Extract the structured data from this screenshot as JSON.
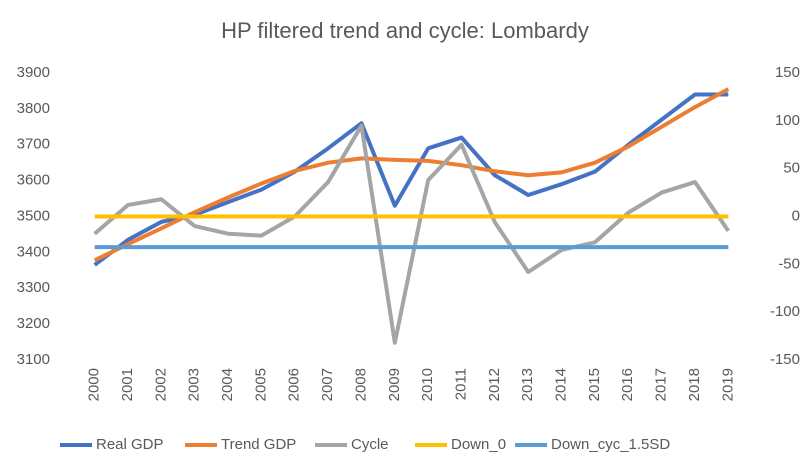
{
  "chart_data": {
    "type": "line",
    "title": "HP filtered trend and cycle: Lombardy",
    "categories": [
      "2000",
      "2001",
      "2002",
      "2003",
      "2004",
      "2005",
      "2006",
      "2007",
      "2008",
      "2009",
      "2010",
      "2011",
      "2012",
      "2013",
      "2014",
      "2015",
      "2016",
      "2017",
      "2018",
      "2019"
    ],
    "series": [
      {
        "name": "Real GDP",
        "color": "#4472c4",
        "values": [
          3365,
          3435,
          3485,
          3505,
          3540,
          3575,
          3625,
          3690,
          3760,
          3530,
          3690,
          3720,
          3615,
          3560,
          3590,
          3625,
          3700,
          3770,
          3840,
          3840
        ]
      },
      {
        "name": "Trend GDP",
        "color": "#ed7d31",
        "values": [
          3378,
          3423,
          3467,
          3512,
          3553,
          3592,
          3627,
          3650,
          3662,
          3658,
          3655,
          3643,
          3626,
          3615,
          3623,
          3650,
          3695,
          3750,
          3805,
          3855
        ]
      },
      {
        "name": "Cycle",
        "color": "#a5a5a5",
        "axis": "y2",
        "values": [
          -18,
          12,
          18,
          -10,
          -18,
          -20,
          0,
          36,
          95,
          -132,
          38,
          75,
          -6,
          -58,
          -35,
          -27,
          4,
          25,
          36,
          -15
        ]
      },
      {
        "name": "Down_0",
        "color": "#ffc000",
        "axis": "y2",
        "values": [
          0,
          0,
          0,
          0,
          0,
          0,
          0,
          0,
          0,
          0,
          0,
          0,
          0,
          0,
          0,
          0,
          0,
          0,
          0,
          0
        ]
      },
      {
        "name": "Down_cyc_1.5SD",
        "color": "#5b9bd5",
        "axis": "y2",
        "values": [
          -32,
          -32,
          -32,
          -32,
          -32,
          -32,
          -32,
          -32,
          -32,
          -32,
          -32,
          -32,
          -32,
          -32,
          -32,
          -32,
          -32,
          -32,
          -32,
          -32
        ]
      }
    ],
    "ylim": [
      3100,
      3900
    ],
    "yticks": [
      3100,
      3200,
      3300,
      3400,
      3500,
      3600,
      3700,
      3800,
      3900
    ],
    "y2lim": [
      -150,
      150
    ],
    "y2ticks": [
      -150,
      -100,
      -50,
      0,
      50,
      100,
      150
    ],
    "legend": "bottom"
  }
}
